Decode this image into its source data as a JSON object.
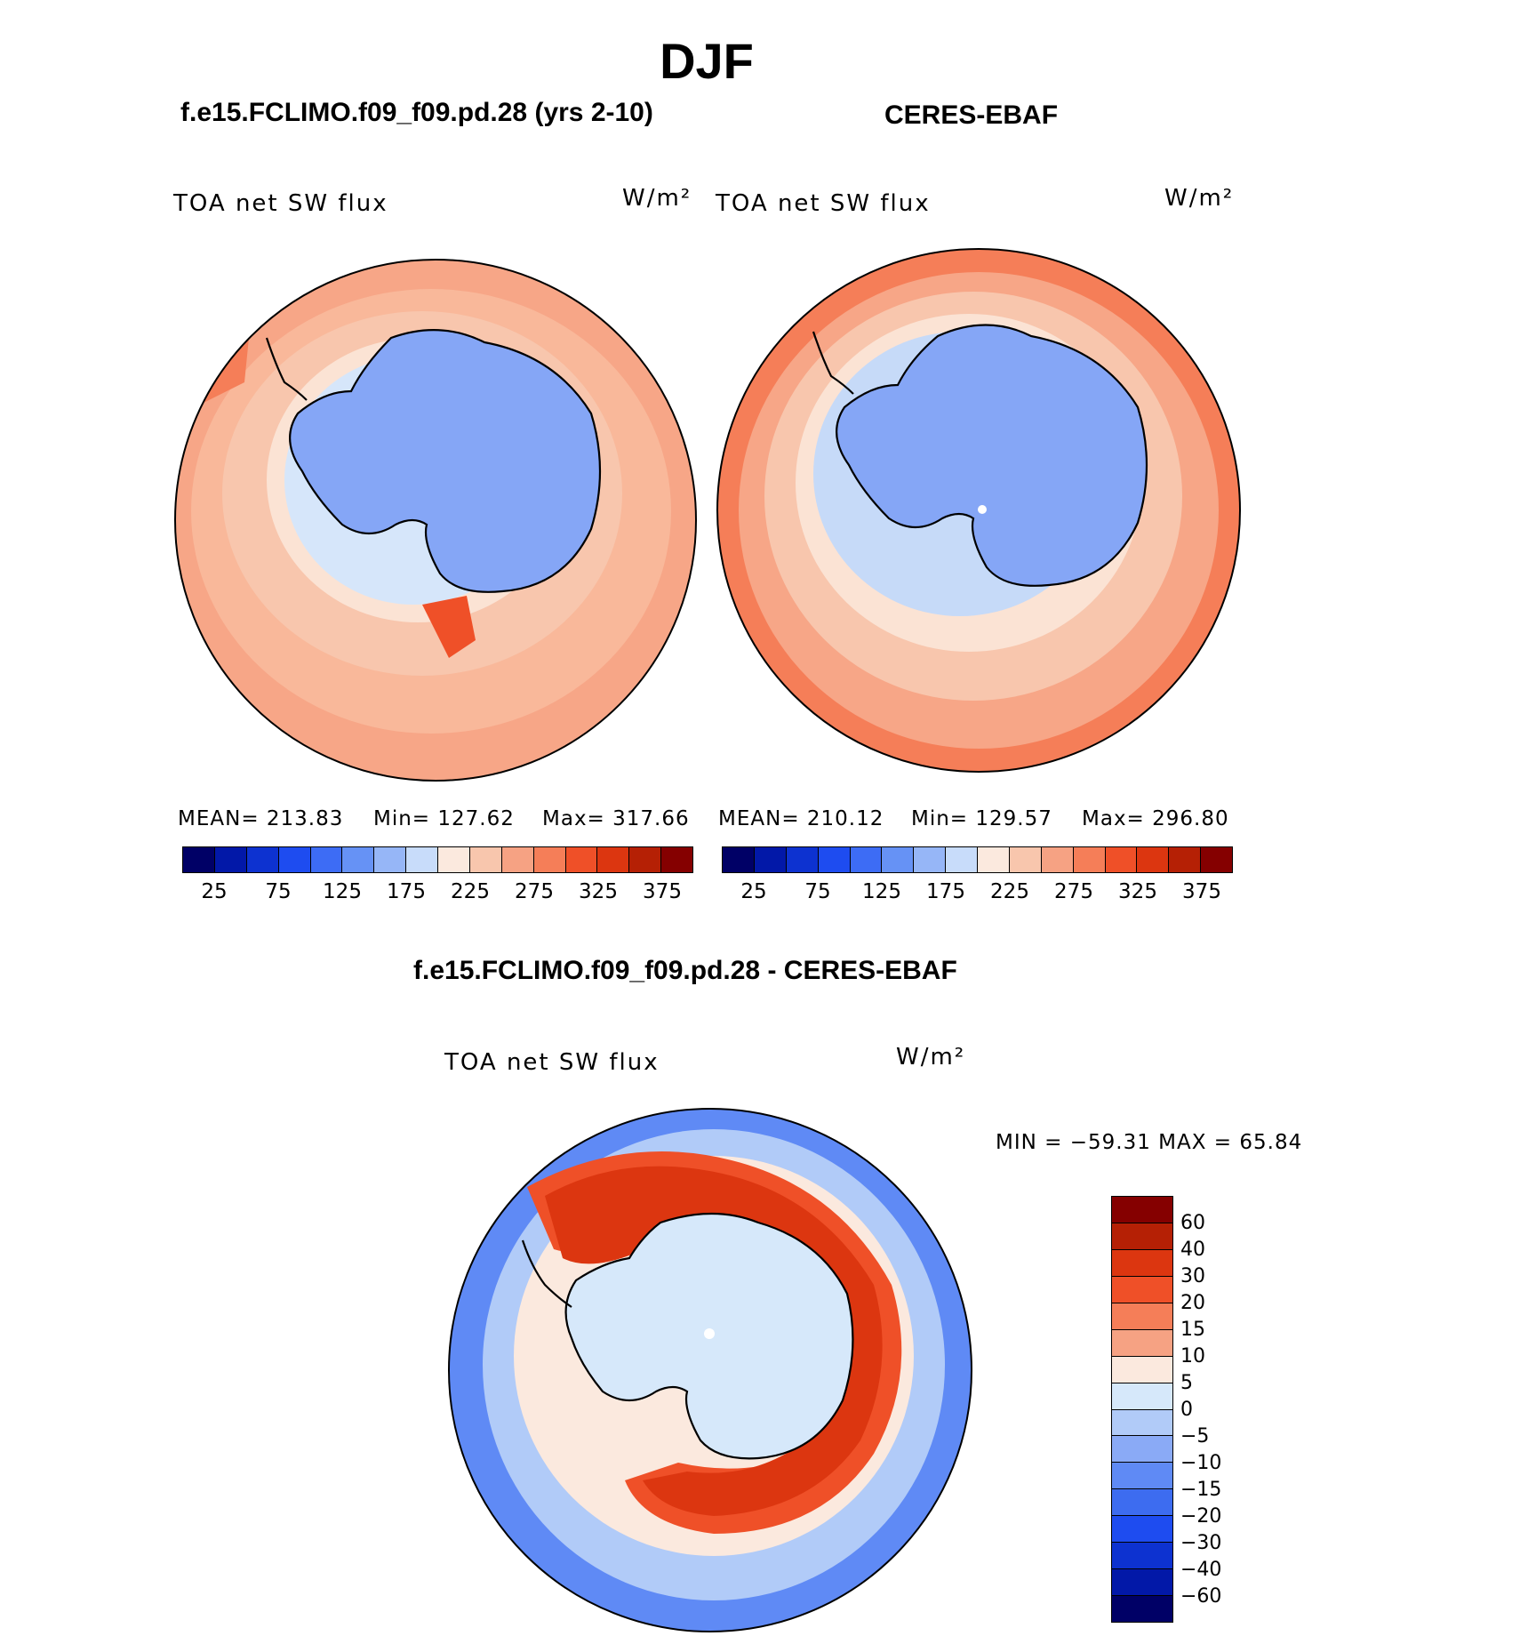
{
  "title": "DJF",
  "panels": [
    {
      "case_title": "f.e15.FCLIMO.f09_f09.pd.28 (yrs 2-10)",
      "variable": "TOA net SW flux",
      "units": "W/m²",
      "mean_label": "MEAN= 213.83",
      "min_label": "Min= 127.62",
      "max_label": "Max= 317.66"
    },
    {
      "case_title": "CERES-EBAF",
      "variable": "TOA net SW flux",
      "units": "W/m²",
      "mean_label": "MEAN= 210.12",
      "min_label": "Min= 129.57",
      "max_label": "Max= 296.80"
    }
  ],
  "abs_colorbar": {
    "colors": [
      "#000066",
      "#0218a8",
      "#0d32d0",
      "#1e4cf0",
      "#3d6cf5",
      "#6692f5",
      "#96b6f7",
      "#c8dcfa",
      "#fbe9de",
      "#f8c6ad",
      "#f6a283",
      "#f57e58",
      "#ef5028",
      "#dc3610",
      "#b52005",
      "#850000"
    ],
    "ticks": [
      "25",
      "75",
      "125",
      "175",
      "225",
      "275",
      "325",
      "375"
    ]
  },
  "diff": {
    "case_title": "f.e15.FCLIMO.f09_f09.pd.28 - CERES-EBAF",
    "variable": "TOA net SW flux",
    "units": "W/m²",
    "minmax_label": "MIN = −59.31 MAX =   65.84",
    "colorbar": {
      "colors": [
        "#850000",
        "#b52005",
        "#dc3610",
        "#ef5028",
        "#f57e58",
        "#f6a283",
        "#fbe9de",
        "#d6e8fa",
        "#b1cbf8",
        "#8aaaf6",
        "#5f8af5",
        "#3d6cf0",
        "#1e4cf0",
        "#0d32d0",
        "#0218a8",
        "#000066"
      ],
      "ticks": [
        "60",
        "40",
        "30",
        "20",
        "15",
        "10",
        "5",
        "0",
        "−5",
        "−10",
        "−15",
        "−20",
        "−30",
        "−40",
        "−60"
      ]
    }
  },
  "colors": {
    "land_blue": "#85a6f6",
    "ocean_orange": "#f7a687",
    "ocean_light": "#f8c6ad",
    "coast": "#000000"
  }
}
